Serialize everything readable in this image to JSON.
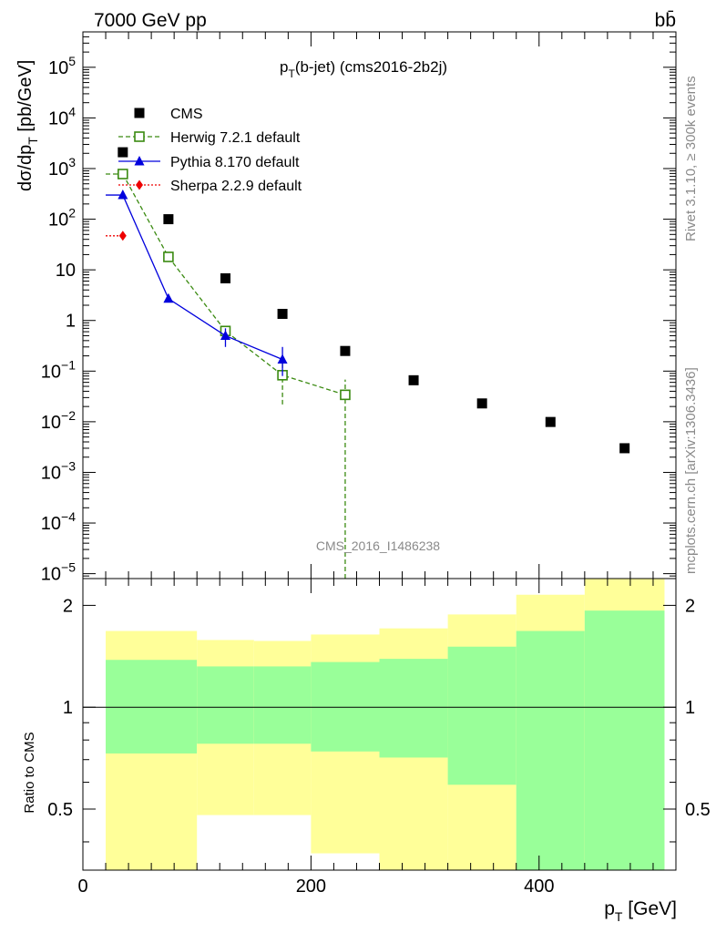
{
  "header": {
    "left": "7000 GeV pp",
    "right": "bb̄"
  },
  "side": {
    "rivet": "Rivet 3.1.10, ≥ 300k events",
    "mcplots": "mcplots.cern.ch [arXiv:1306.3436]"
  },
  "labels": {
    "title_p": "p",
    "title_sub": "T",
    "title_rest": "(b-jet) (cms2016-2b2j)",
    "ylabel_main": "dσ/dp",
    "ylabel_sub": "T",
    "ylabel_unit": " [pb/GeV]",
    "ratio_label": "Ratio to CMS",
    "xlabel_p": "p",
    "xlabel_sub": "T",
    "xlabel_unit": " [GeV]",
    "watermark": "CMS_2016_I1486238"
  },
  "chart_data": {
    "type": "scatter",
    "title": "p_T(b-jet) (cms2016-2b2j)",
    "xlabel": "p_T [GeV]",
    "ylabel": "dσ/dp_T [pb/GeV]",
    "log_y": true,
    "xlim": [
      0,
      520
    ],
    "ylim": [
      8e-06,
      500000
    ],
    "x_ticks": [
      "0",
      "200",
      "400"
    ],
    "y_ticks": [
      "10^5",
      "10^4",
      "10^3",
      "10^2",
      "10",
      "1",
      "10^-1",
      "10^-2",
      "10^-3",
      "10^-4",
      "10^-5"
    ],
    "legend_position": "top-left",
    "series": [
      {
        "name": "CMS",
        "color": "#000000",
        "marker": "square",
        "points": [
          {
            "x": 35,
            "y": 2100
          },
          {
            "x": 75,
            "y": 100
          },
          {
            "x": 125,
            "y": 6.8
          },
          {
            "x": 175,
            "y": 1.35
          },
          {
            "x": 230,
            "y": 0.25
          },
          {
            "x": 290,
            "y": 0.066
          },
          {
            "x": 350,
            "y": 0.023
          },
          {
            "x": 410,
            "y": 0.0099
          },
          {
            "x": 475,
            "y": 0.003
          }
        ]
      },
      {
        "name": "Herwig 7.2.1 default",
        "color": "#3a8a10",
        "marker": "open-square",
        "line": "dashed",
        "points": [
          {
            "x": 35,
            "y": 780,
            "ylo": 680,
            "yhi": 900
          },
          {
            "x": 75,
            "y": 18,
            "ylo": 15,
            "yhi": 21
          },
          {
            "x": 125,
            "y": 0.62,
            "ylo": 0.5,
            "yhi": 0.75
          },
          {
            "x": 175,
            "y": 0.083,
            "ylo": 0.022,
            "yhi": 0.15
          },
          {
            "x": 230,
            "y": 0.034,
            "ylo": 1e-06,
            "yhi": 0.068
          }
        ]
      },
      {
        "name": "Pythia 8.170 default",
        "color": "#0000dd",
        "marker": "triangle",
        "line": "solid",
        "points": [
          {
            "x": 35,
            "y": 300,
            "ylo": 260,
            "yhi": 340
          },
          {
            "x": 75,
            "y": 2.7,
            "ylo": 2.4,
            "yhi": 3.0
          },
          {
            "x": 125,
            "y": 0.5,
            "ylo": 0.3,
            "yhi": 0.7
          },
          {
            "x": 175,
            "y": 0.17,
            "ylo": 0.08,
            "yhi": 0.3
          }
        ]
      },
      {
        "name": "Sherpa 2.2.9 default",
        "color": "#ee0000",
        "marker": "diamond",
        "line": "dotted",
        "points": [
          {
            "x": 35,
            "y": 47,
            "ylo": 44,
            "yhi": 50
          }
        ]
      }
    ],
    "ratio": {
      "ylabel": "Ratio to CMS",
      "ylim": [
        0.33,
        2.4
      ],
      "y_ticks": [
        "0.5",
        "1",
        "2"
      ],
      "bins": [
        {
          "xlo": 20,
          "xhi": 100,
          "g_lo": 0.73,
          "g_hi": 1.38,
          "y_lo": 0.33,
          "y_hi": 1.68
        },
        {
          "xlo": 100,
          "xhi": 150,
          "g_lo": 0.78,
          "g_hi": 1.32,
          "y_lo": 0.48,
          "y_hi": 1.58
        },
        {
          "xlo": 150,
          "xhi": 200,
          "g_lo": 0.78,
          "g_hi": 1.32,
          "y_lo": 0.48,
          "y_hi": 1.57
        },
        {
          "xlo": 200,
          "xhi": 260,
          "g_lo": 0.74,
          "g_hi": 1.36,
          "y_lo": 0.37,
          "y_hi": 1.64
        },
        {
          "xlo": 260,
          "xhi": 320,
          "g_lo": 0.71,
          "g_hi": 1.39,
          "y_lo": 0.33,
          "y_hi": 1.71
        },
        {
          "xlo": 320,
          "xhi": 380,
          "g_lo": 0.59,
          "g_hi": 1.51,
          "y_lo": 0.33,
          "y_hi": 1.88
        },
        {
          "xlo": 380,
          "xhi": 440,
          "g_lo": 0.33,
          "g_hi": 1.68,
          "y_lo": 0.33,
          "y_hi": 2.15
        },
        {
          "xlo": 440,
          "xhi": 510,
          "g_lo": 0.33,
          "g_hi": 1.93,
          "y_lo": 0.33,
          "y_hi": 2.4
        }
      ]
    },
    "colors": {
      "band_green": "#99ff99",
      "band_yellow": "#ffff99"
    }
  }
}
